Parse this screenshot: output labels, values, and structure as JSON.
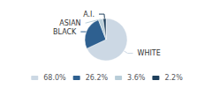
{
  "chart_data": {
    "type": "pie",
    "categories": [
      "WHITE",
      "BLACK",
      "ASIAN",
      "A.I."
    ],
    "values": [
      68.0,
      26.2,
      3.6,
      2.2
    ],
    "value_labels": [
      "68.0%",
      "26.2%",
      "3.6%",
      "2.2%"
    ],
    "colors": [
      "#ccd8e4",
      "#2e6090",
      "#b8cdd8",
      "#1e3f5c"
    ],
    "legend": "bottom"
  }
}
